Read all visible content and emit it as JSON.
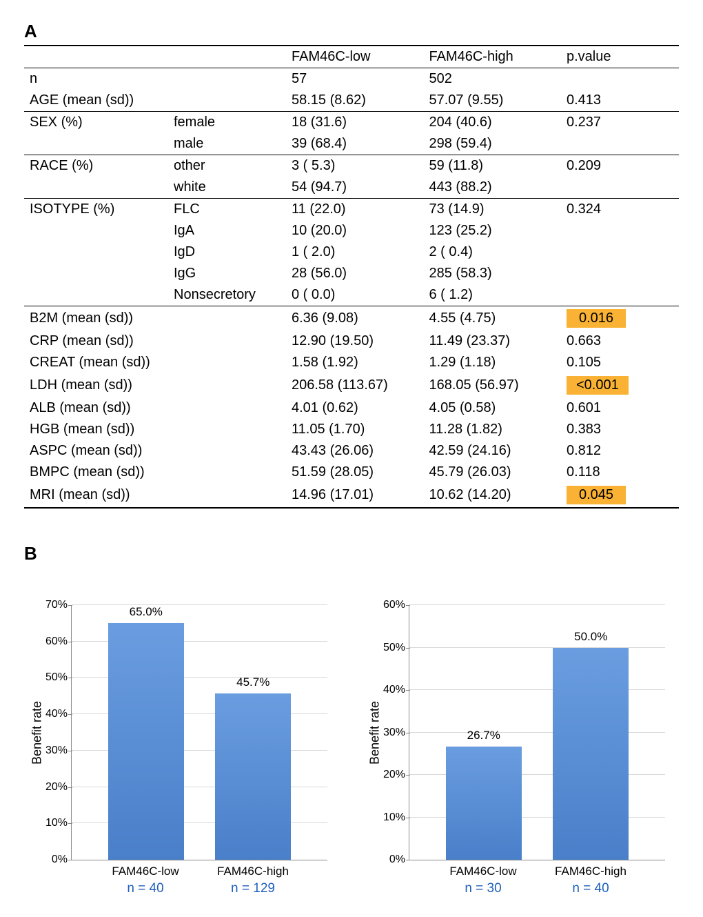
{
  "panelA": {
    "label": "A",
    "headers": {
      "low": "FAM46C-low",
      "high": "FAM46C-high",
      "p": "p.value"
    },
    "rows": [
      {
        "label": "n",
        "sub": "",
        "low": "57",
        "high": "502",
        "p": "",
        "hl": false,
        "border": false
      },
      {
        "label": "AGE (mean (sd))",
        "sub": "",
        "low": "58.15 (8.62)",
        "high": "57.07 (9.55)",
        "p": "0.413",
        "hl": false,
        "border": true
      },
      {
        "label": "SEX (%)",
        "sub": "female",
        "low": "18 (31.6)",
        "high": "204 (40.6)",
        "p": "0.237",
        "hl": false,
        "border": false
      },
      {
        "label": "",
        "sub": "male",
        "low": "39 (68.4)",
        "high": "298 (59.4)",
        "p": "",
        "hl": false,
        "border": true
      },
      {
        "label": "RACE (%)",
        "sub": "other",
        "low": "3 ( 5.3)",
        "high": "59 (11.8)",
        "p": "0.209",
        "hl": false,
        "border": false
      },
      {
        "label": "",
        "sub": "white",
        "low": "54 (94.7)",
        "high": "443 (88.2)",
        "p": "",
        "hl": false,
        "border": true
      },
      {
        "label": "ISOTYPE (%)",
        "sub": "FLC",
        "low": "11 (22.0)",
        "high": "73 (14.9)",
        "p": "0.324",
        "hl": false,
        "border": false
      },
      {
        "label": "",
        "sub": "IgA",
        "low": "10 (20.0)",
        "high": "123 (25.2)",
        "p": "",
        "hl": false,
        "border": false
      },
      {
        "label": "",
        "sub": "IgD",
        "low": "1 ( 2.0)",
        "high": "2 ( 0.4)",
        "p": "",
        "hl": false,
        "border": false
      },
      {
        "label": "",
        "sub": "IgG",
        "low": "28 (56.0)",
        "high": "285 (58.3)",
        "p": "",
        "hl": false,
        "border": false
      },
      {
        "label": "",
        "sub": "Nonsecretory",
        "low": "0 ( 0.0)",
        "high": "6 ( 1.2)",
        "p": "",
        "hl": false,
        "border": true
      },
      {
        "label": "B2M (mean (sd))",
        "sub": "",
        "low": "6.36 (9.08)",
        "high": "4.55 (4.75)",
        "p": "0.016",
        "hl": true,
        "border": false
      },
      {
        "label": "CRP (mean (sd))",
        "sub": "",
        "low": "12.90 (19.50)",
        "high": "11.49 (23.37)",
        "p": "0.663",
        "hl": false,
        "border": false
      },
      {
        "label": "CREAT (mean (sd))",
        "sub": "",
        "low": "1.58 (1.92)",
        "high": "1.29 (1.18)",
        "p": "0.105",
        "hl": false,
        "border": false
      },
      {
        "label": "LDH (mean (sd))",
        "sub": "",
        "low": "206.58 (113.67)",
        "high": "168.05 (56.97)",
        "p": "<0.001",
        "hl": true,
        "border": false
      },
      {
        "label": "ALB (mean (sd))",
        "sub": "",
        "low": "4.01 (0.62)",
        "high": "4.05 (0.58)",
        "p": "0.601",
        "hl": false,
        "border": false
      },
      {
        "label": "HGB (mean (sd))",
        "sub": "",
        "low": "11.05 (1.70)",
        "high": "11.28 (1.82)",
        "p": "0.383",
        "hl": false,
        "border": false
      },
      {
        "label": "ASPC (mean (sd))",
        "sub": "",
        "low": "43.43 (26.06)",
        "high": "42.59 (24.16)",
        "p": "0.812",
        "hl": false,
        "border": false
      },
      {
        "label": "BMPC (mean (sd))",
        "sub": "",
        "low": "51.59 (28.05)",
        "high": "45.79 (26.03)",
        "p": "0.118",
        "hl": false,
        "border": false
      },
      {
        "label": "MRI (mean (sd))",
        "sub": "",
        "low": "14.96 (17.01)",
        "high": "10.62 (14.20)",
        "p": "0.045",
        "hl": true,
        "border": false
      }
    ]
  },
  "panelB": {
    "label": "B",
    "ylabel": "Benefit rate",
    "bar_color_top": "#6a9de0",
    "bar_color_bottom": "#4a7fc9",
    "grid_color": "#d9d9d9",
    "axis_color": "#888888",
    "n_color": "#1f5fbf",
    "charts": [
      {
        "ymax": 70,
        "ytick_step": 10,
        "bars": [
          {
            "cat": "FAM46C-low",
            "value": 65.0,
            "label": "65.0%",
            "n": "n = 40"
          },
          {
            "cat": "FAM46C-high",
            "value": 45.7,
            "label": "45.7%",
            "n": "n = 129"
          }
        ]
      },
      {
        "ymax": 60,
        "ytick_step": 10,
        "bars": [
          {
            "cat": "FAM46C-low",
            "value": 26.7,
            "label": "26.7%",
            "n": "n = 30"
          },
          {
            "cat": "FAM46C-high",
            "value": 50.0,
            "label": "50.0%",
            "n": "n = 40"
          }
        ]
      }
    ]
  }
}
